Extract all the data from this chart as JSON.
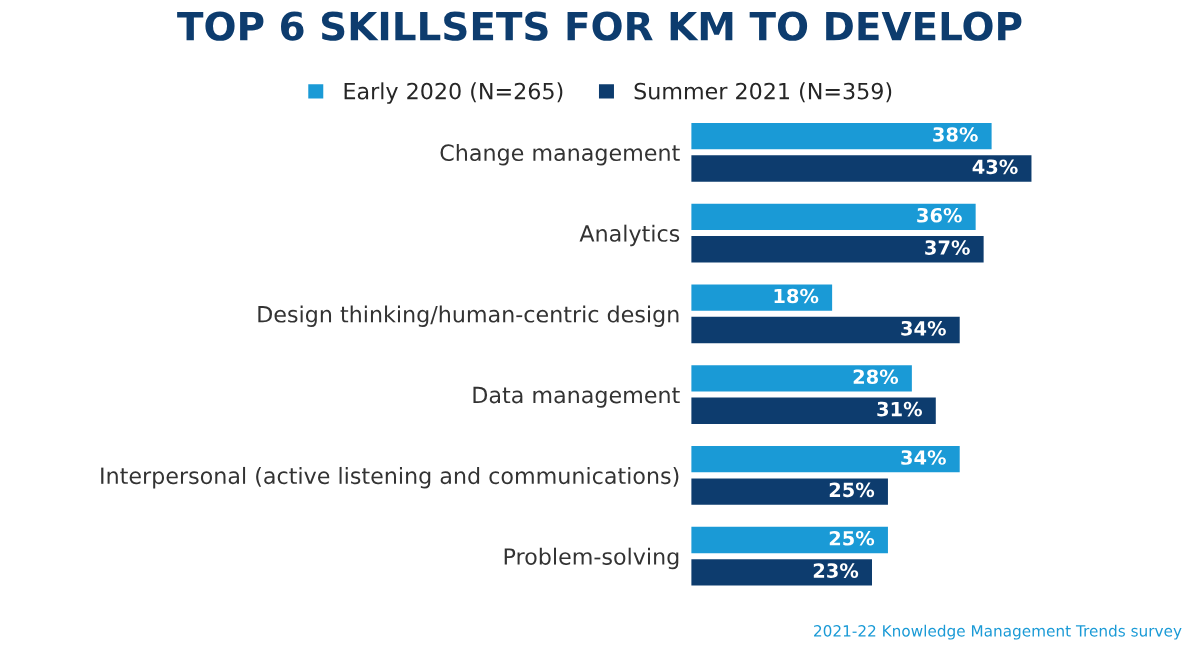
{
  "chart_data": {
    "type": "bar",
    "orientation": "horizontal",
    "title": "TOP 6 SKILLSETS FOR KM TO DEVELOP",
    "categories": [
      "Change management",
      "Analytics",
      "Design thinking/human-centric design",
      "Data management",
      "Interpersonal (active listening and communications)",
      "Problem-solving"
    ],
    "series": [
      {
        "name": "Early 2020 (N=265)",
        "color": "#1a9ad6",
        "values": [
          38,
          36,
          18,
          28,
          34,
          25
        ],
        "value_labels": [
          "38%",
          "36%",
          "18%",
          "28%",
          "34%",
          "25%"
        ]
      },
      {
        "name": "Summer 2021 (N=359)",
        "color": "#0d3c6e",
        "values": [
          43,
          37,
          34,
          31,
          25,
          23
        ],
        "value_labels": [
          "43%",
          "37%",
          "34%",
          "31%",
          "25%",
          "23%"
        ]
      }
    ],
    "legend": "top",
    "grid": false,
    "annotations": [
      "2021-22 Knowledge Management Trends survey"
    ]
  }
}
